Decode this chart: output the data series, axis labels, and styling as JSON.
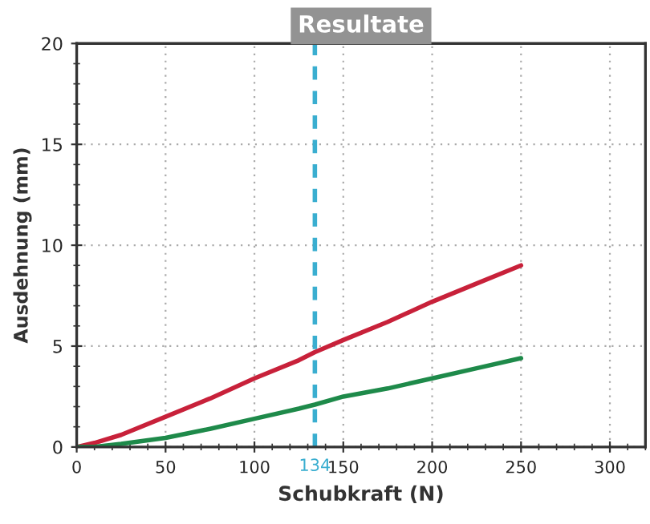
{
  "chart_data": {
    "type": "line",
    "title": "Resultate",
    "xlabel": "Schubkraft (N)",
    "ylabel": "Ausdehnung (mm)",
    "x": [
      0,
      10,
      25,
      50,
      75,
      100,
      125,
      134,
      150,
      175,
      200,
      225,
      250
    ],
    "series": [
      {
        "color": "#c8213a",
        "values": [
          0,
          0.2,
          0.6,
          1.5,
          2.4,
          3.4,
          4.3,
          4.7,
          5.3,
          6.2,
          7.2,
          8.1,
          9.0
        ]
      },
      {
        "color": "#1e8a4a",
        "values": [
          0,
          0,
          0.15,
          0.45,
          0.9,
          1.4,
          1.9,
          2.1,
          2.5,
          2.9,
          3.4,
          3.9,
          4.4
        ]
      }
    ],
    "xlim": [
      0,
      320
    ],
    "ylim": [
      0,
      20
    ],
    "xticks": [
      0,
      50,
      100,
      150,
      200,
      250,
      300
    ],
    "yticks": [
      0,
      5,
      10,
      15,
      20
    ],
    "ref_lines": [
      {
        "axis": "x",
        "value": 134,
        "label": "134",
        "color": "#3aaed0",
        "line_style": "dashed"
      }
    ],
    "grid": true,
    "legend": false,
    "marker": "none",
    "line_style": "solid"
  }
}
